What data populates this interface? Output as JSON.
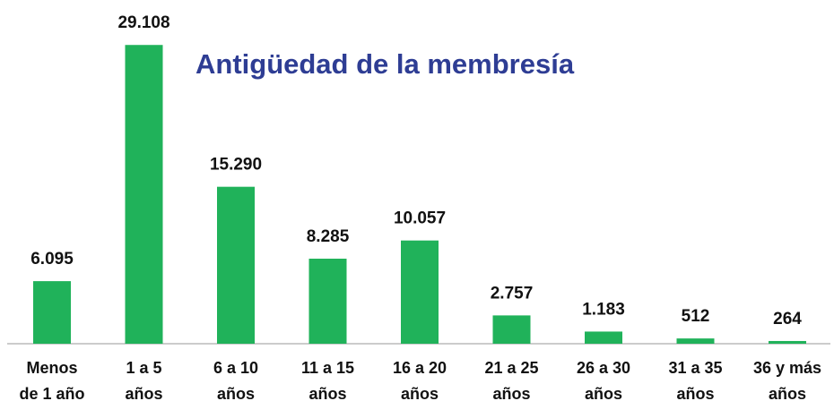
{
  "chart_data": {
    "type": "bar",
    "title": "Antigüedad de la membresía",
    "categories": [
      "Menos\nde 1 año",
      "1 a 5\naños",
      "6 a 10\naños",
      "11 a 15\naños",
      "16 a 20\naños",
      "21 a 25\naños",
      "26 a 30\naños",
      "31 a 35\naños",
      "36 y más\naños"
    ],
    "values": [
      6095,
      29108,
      15290,
      8285,
      10057,
      2757,
      1183,
      512,
      264
    ],
    "value_labels": [
      "6.095",
      "29.108",
      "15.290",
      "8.285",
      "10.057",
      "2.757",
      "1.183",
      "512",
      "264"
    ],
    "color": "#20b25a",
    "ylim": [
      0,
      30000
    ]
  }
}
